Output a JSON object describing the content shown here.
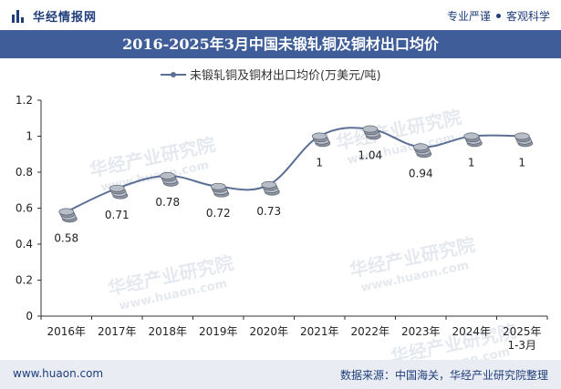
{
  "header": {
    "brand": "华经情报网",
    "tagline_left": "专业严谨",
    "tagline_right": "客观科学"
  },
  "title": "2016-2025年3月中国未锻轧铜及铜材出口均价",
  "watermark": {
    "cn": "华经产业研究院",
    "url": "www.huaon.com"
  },
  "footer": {
    "left": "www.huaon.com",
    "right": "数据来源：中国海关，华经产业研究院整理"
  },
  "colors": {
    "line": "#5b6f95",
    "title_bg": "#3f5e99",
    "brand": "#1f3d7a",
    "footer_bg": "#e9edf3"
  },
  "chart_data": {
    "type": "line",
    "title": "2016-2025年3月中国未锻轧铜及铜材出口均价",
    "legend": "未锻轧铜及铜材出口均价(万美元/吨)",
    "legend_position": "top-center",
    "categories": [
      "2016年",
      "2017年",
      "2018年",
      "2019年",
      "2020年",
      "2021年",
      "2022年",
      "2023年",
      "2024年",
      "2025年\n1-3月"
    ],
    "values": [
      0.58,
      0.71,
      0.78,
      0.72,
      0.73,
      1,
      1.04,
      0.94,
      1,
      1
    ],
    "value_labels": [
      "0.58",
      "0.71",
      "0.78",
      "0.72",
      "0.73",
      "1",
      "1.04",
      "0.94",
      "1",
      "1"
    ],
    "ylim": [
      0,
      1.2
    ],
    "yticks": [
      0,
      0.2,
      0.4,
      0.6,
      0.8,
      1,
      1.2
    ],
    "ytick_labels": [
      "0",
      "0.2",
      "0.4",
      "0.6",
      "0.8",
      "1",
      "1.2"
    ],
    "xlabel": "",
    "ylabel": "",
    "grid": false
  }
}
